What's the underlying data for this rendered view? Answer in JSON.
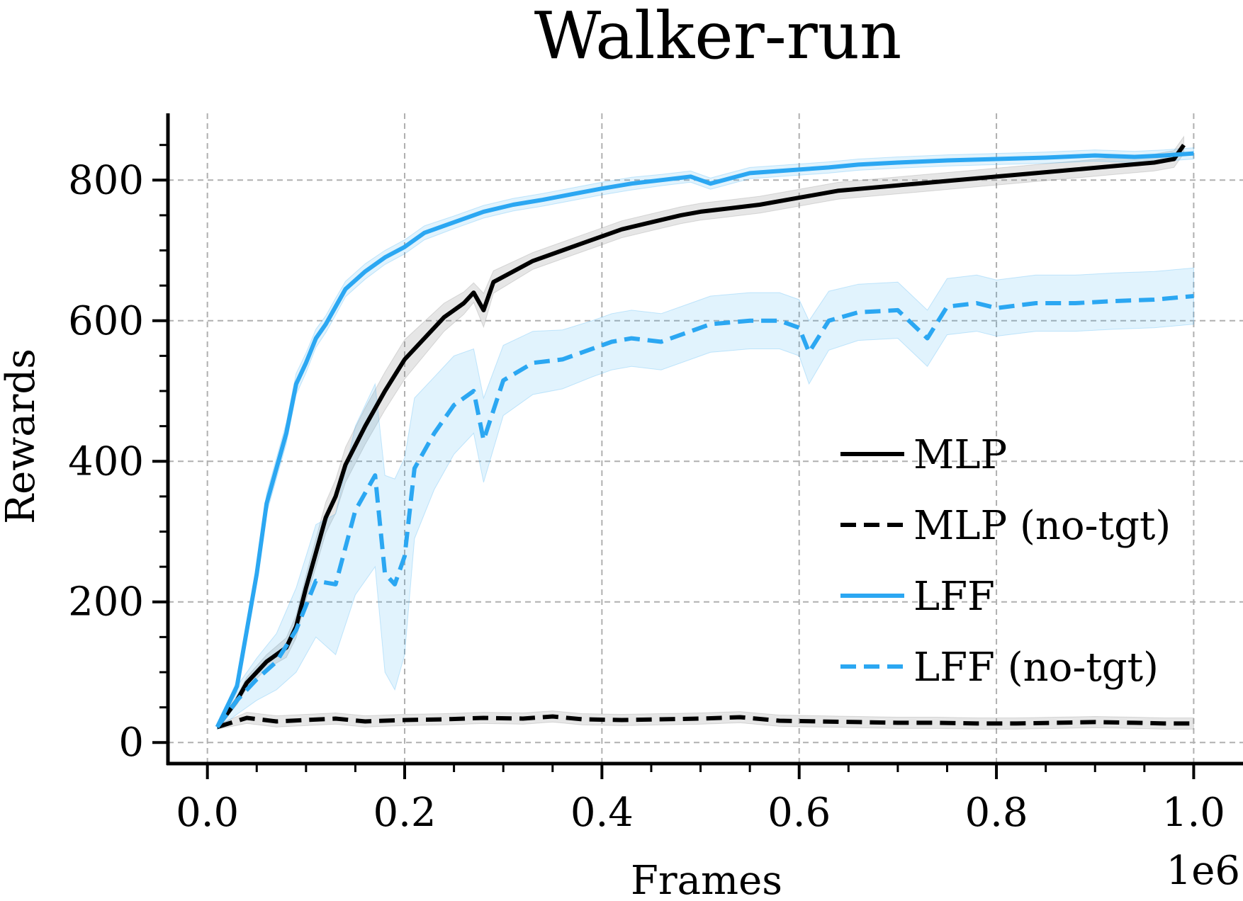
{
  "chart_data": {
    "type": "line",
    "title": "Walker-run",
    "xlabel": "Frames",
    "ylabel": "Rewards",
    "x_offset_label": "1e6",
    "xlim": [
      -0.04,
      1.05
    ],
    "ylim": [
      -30,
      895
    ],
    "x_ticks": [
      0.0,
      0.2,
      0.4,
      0.6,
      0.8,
      1.0
    ],
    "x_tick_labels": [
      "0.0",
      "0.2",
      "0.4",
      "0.6",
      "0.8",
      "1.0"
    ],
    "y_ticks": [
      0,
      200,
      400,
      600,
      800
    ],
    "y_tick_labels": [
      "0",
      "200",
      "400",
      "600",
      "800"
    ],
    "grid": true,
    "legend_position": "center-right",
    "series": [
      {
        "name": "MLP",
        "color": "#000000",
        "dash": "solid",
        "x": [
          0.01,
          0.03,
          0.04,
          0.06,
          0.08,
          0.09,
          0.1,
          0.11,
          0.12,
          0.13,
          0.14,
          0.16,
          0.18,
          0.2,
          0.22,
          0.24,
          0.26,
          0.27,
          0.28,
          0.29,
          0.31,
          0.33,
          0.36,
          0.38,
          0.4,
          0.42,
          0.45,
          0.48,
          0.5,
          0.53,
          0.56,
          0.6,
          0.64,
          0.68,
          0.72,
          0.76,
          0.8,
          0.84,
          0.88,
          0.92,
          0.96,
          0.98,
          0.99
        ],
        "values": [
          22,
          60,
          85,
          115,
          135,
          165,
          220,
          270,
          320,
          350,
          395,
          450,
          500,
          545,
          575,
          605,
          625,
          640,
          615,
          655,
          670,
          685,
          700,
          710,
          720,
          730,
          740,
          750,
          755,
          760,
          765,
          775,
          785,
          790,
          795,
          800,
          805,
          810,
          815,
          820,
          825,
          830,
          850
        ],
        "band_width": [
          3,
          6,
          8,
          10,
          14,
          16,
          18,
          20,
          22,
          24,
          25,
          26,
          27,
          28,
          24,
          20,
          16,
          14,
          24,
          16,
          14,
          12,
          12,
          12,
          12,
          12,
          12,
          12,
          12,
          12,
          12,
          12,
          12,
          12,
          12,
          12,
          12,
          12,
          12,
          12,
          12,
          12,
          12
        ]
      },
      {
        "name": "MLP (no-tgt)",
        "color": "#000000",
        "dash": "dashed",
        "x": [
          0.01,
          0.04,
          0.07,
          0.1,
          0.13,
          0.16,
          0.2,
          0.24,
          0.28,
          0.32,
          0.35,
          0.38,
          0.42,
          0.46,
          0.5,
          0.54,
          0.58,
          0.62,
          0.66,
          0.7,
          0.74,
          0.78,
          0.82,
          0.86,
          0.9,
          0.94,
          0.97,
          1.0
        ],
        "values": [
          22,
          35,
          30,
          32,
          34,
          30,
          32,
          33,
          35,
          34,
          37,
          33,
          32,
          33,
          34,
          36,
          31,
          30,
          29,
          28,
          28,
          27,
          27,
          28,
          29,
          28,
          27,
          27
        ],
        "band_width": [
          3,
          8,
          8,
          8,
          8,
          8,
          8,
          8,
          8,
          8,
          8,
          8,
          8,
          8,
          8,
          8,
          8,
          8,
          8,
          8,
          8,
          8,
          8,
          8,
          8,
          8,
          8,
          8
        ]
      },
      {
        "name": "LFF",
        "color": "#2ba7f2",
        "dash": "solid",
        "x": [
          0.01,
          0.03,
          0.05,
          0.06,
          0.08,
          0.09,
          0.1,
          0.11,
          0.12,
          0.13,
          0.14,
          0.16,
          0.18,
          0.2,
          0.22,
          0.25,
          0.28,
          0.31,
          0.34,
          0.37,
          0.4,
          0.43,
          0.46,
          0.49,
          0.51,
          0.55,
          0.6,
          0.63,
          0.66,
          0.7,
          0.75,
          0.8,
          0.85,
          0.9,
          0.94,
          0.97,
          1.0
        ],
        "values": [
          22,
          80,
          240,
          340,
          440,
          510,
          540,
          575,
          595,
          620,
          645,
          670,
          690,
          705,
          725,
          740,
          755,
          765,
          772,
          780,
          788,
          795,
          800,
          805,
          795,
          810,
          815,
          818,
          822,
          825,
          828,
          830,
          832,
          835,
          833,
          835,
          838
        ],
        "band_width": [
          3,
          8,
          12,
          14,
          15,
          15,
          14,
          13,
          12,
          12,
          11,
          11,
          10,
          10,
          10,
          9,
          9,
          9,
          9,
          9,
          9,
          9,
          8,
          8,
          8,
          8,
          8,
          8,
          8,
          8,
          8,
          8,
          8,
          8,
          8,
          8,
          8
        ]
      },
      {
        "name": "LFF (no-tgt)",
        "color": "#2ba7f2",
        "dash": "dashed",
        "x": [
          0.01,
          0.03,
          0.05,
          0.07,
          0.09,
          0.11,
          0.13,
          0.15,
          0.17,
          0.18,
          0.19,
          0.2,
          0.21,
          0.23,
          0.25,
          0.27,
          0.28,
          0.3,
          0.33,
          0.36,
          0.39,
          0.41,
          0.43,
          0.46,
          0.49,
          0.51,
          0.55,
          0.58,
          0.6,
          0.61,
          0.63,
          0.66,
          0.7,
          0.73,
          0.75,
          0.78,
          0.8,
          0.84,
          0.88,
          0.92,
          0.96,
          1.0
        ],
        "values": [
          22,
          60,
          90,
          115,
          160,
          230,
          225,
          330,
          380,
          240,
          225,
          265,
          390,
          440,
          480,
          500,
          430,
          515,
          540,
          545,
          560,
          570,
          575,
          570,
          585,
          595,
          600,
          600,
          590,
          555,
          600,
          612,
          615,
          575,
          620,
          625,
          618,
          625,
          625,
          628,
          630,
          635
        ],
        "band_width": [
          3,
          20,
          30,
          40,
          60,
          80,
          100,
          120,
          130,
          140,
          150,
          140,
          100,
          80,
          70,
          60,
          60,
          50,
          45,
          42,
          40,
          40,
          40,
          40,
          40,
          40,
          40,
          40,
          40,
          45,
          42,
          40,
          40,
          40,
          40,
          40,
          40,
          40,
          40,
          40,
          40,
          40
        ]
      }
    ]
  }
}
